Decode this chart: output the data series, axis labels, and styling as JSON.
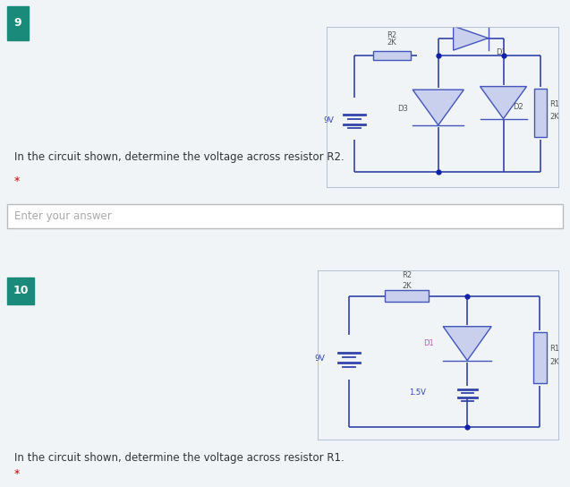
{
  "bg_color": "#f0f4f7",
  "panel_bg": "#dce8ef",
  "answer_bg": "#f5f5f5",
  "circuit_bg": "#ffffff",
  "circuit_border_color": "#aab8cc",
  "wire_color": "#3344aa",
  "dot_color": "#1122aa",
  "component_fill": "#c8d0ee",
  "component_edge": "#4455bb",
  "label_color": "#555555",
  "badge_color": "#1a8a7a",
  "badge_text": "#ffffff",
  "q1_number": "9",
  "q2_number": "10",
  "q1_question": "In the circuit shown, determine the voltage across resistor R2.",
  "q2_question": "In the circuit shown, determine the voltage across resistor R1.",
  "answer_placeholder": "Enter your answer",
  "asterisk_color": "#cc0000",
  "d1_pink": "#cc55aa",
  "voltage_label_color": "#3344aa"
}
